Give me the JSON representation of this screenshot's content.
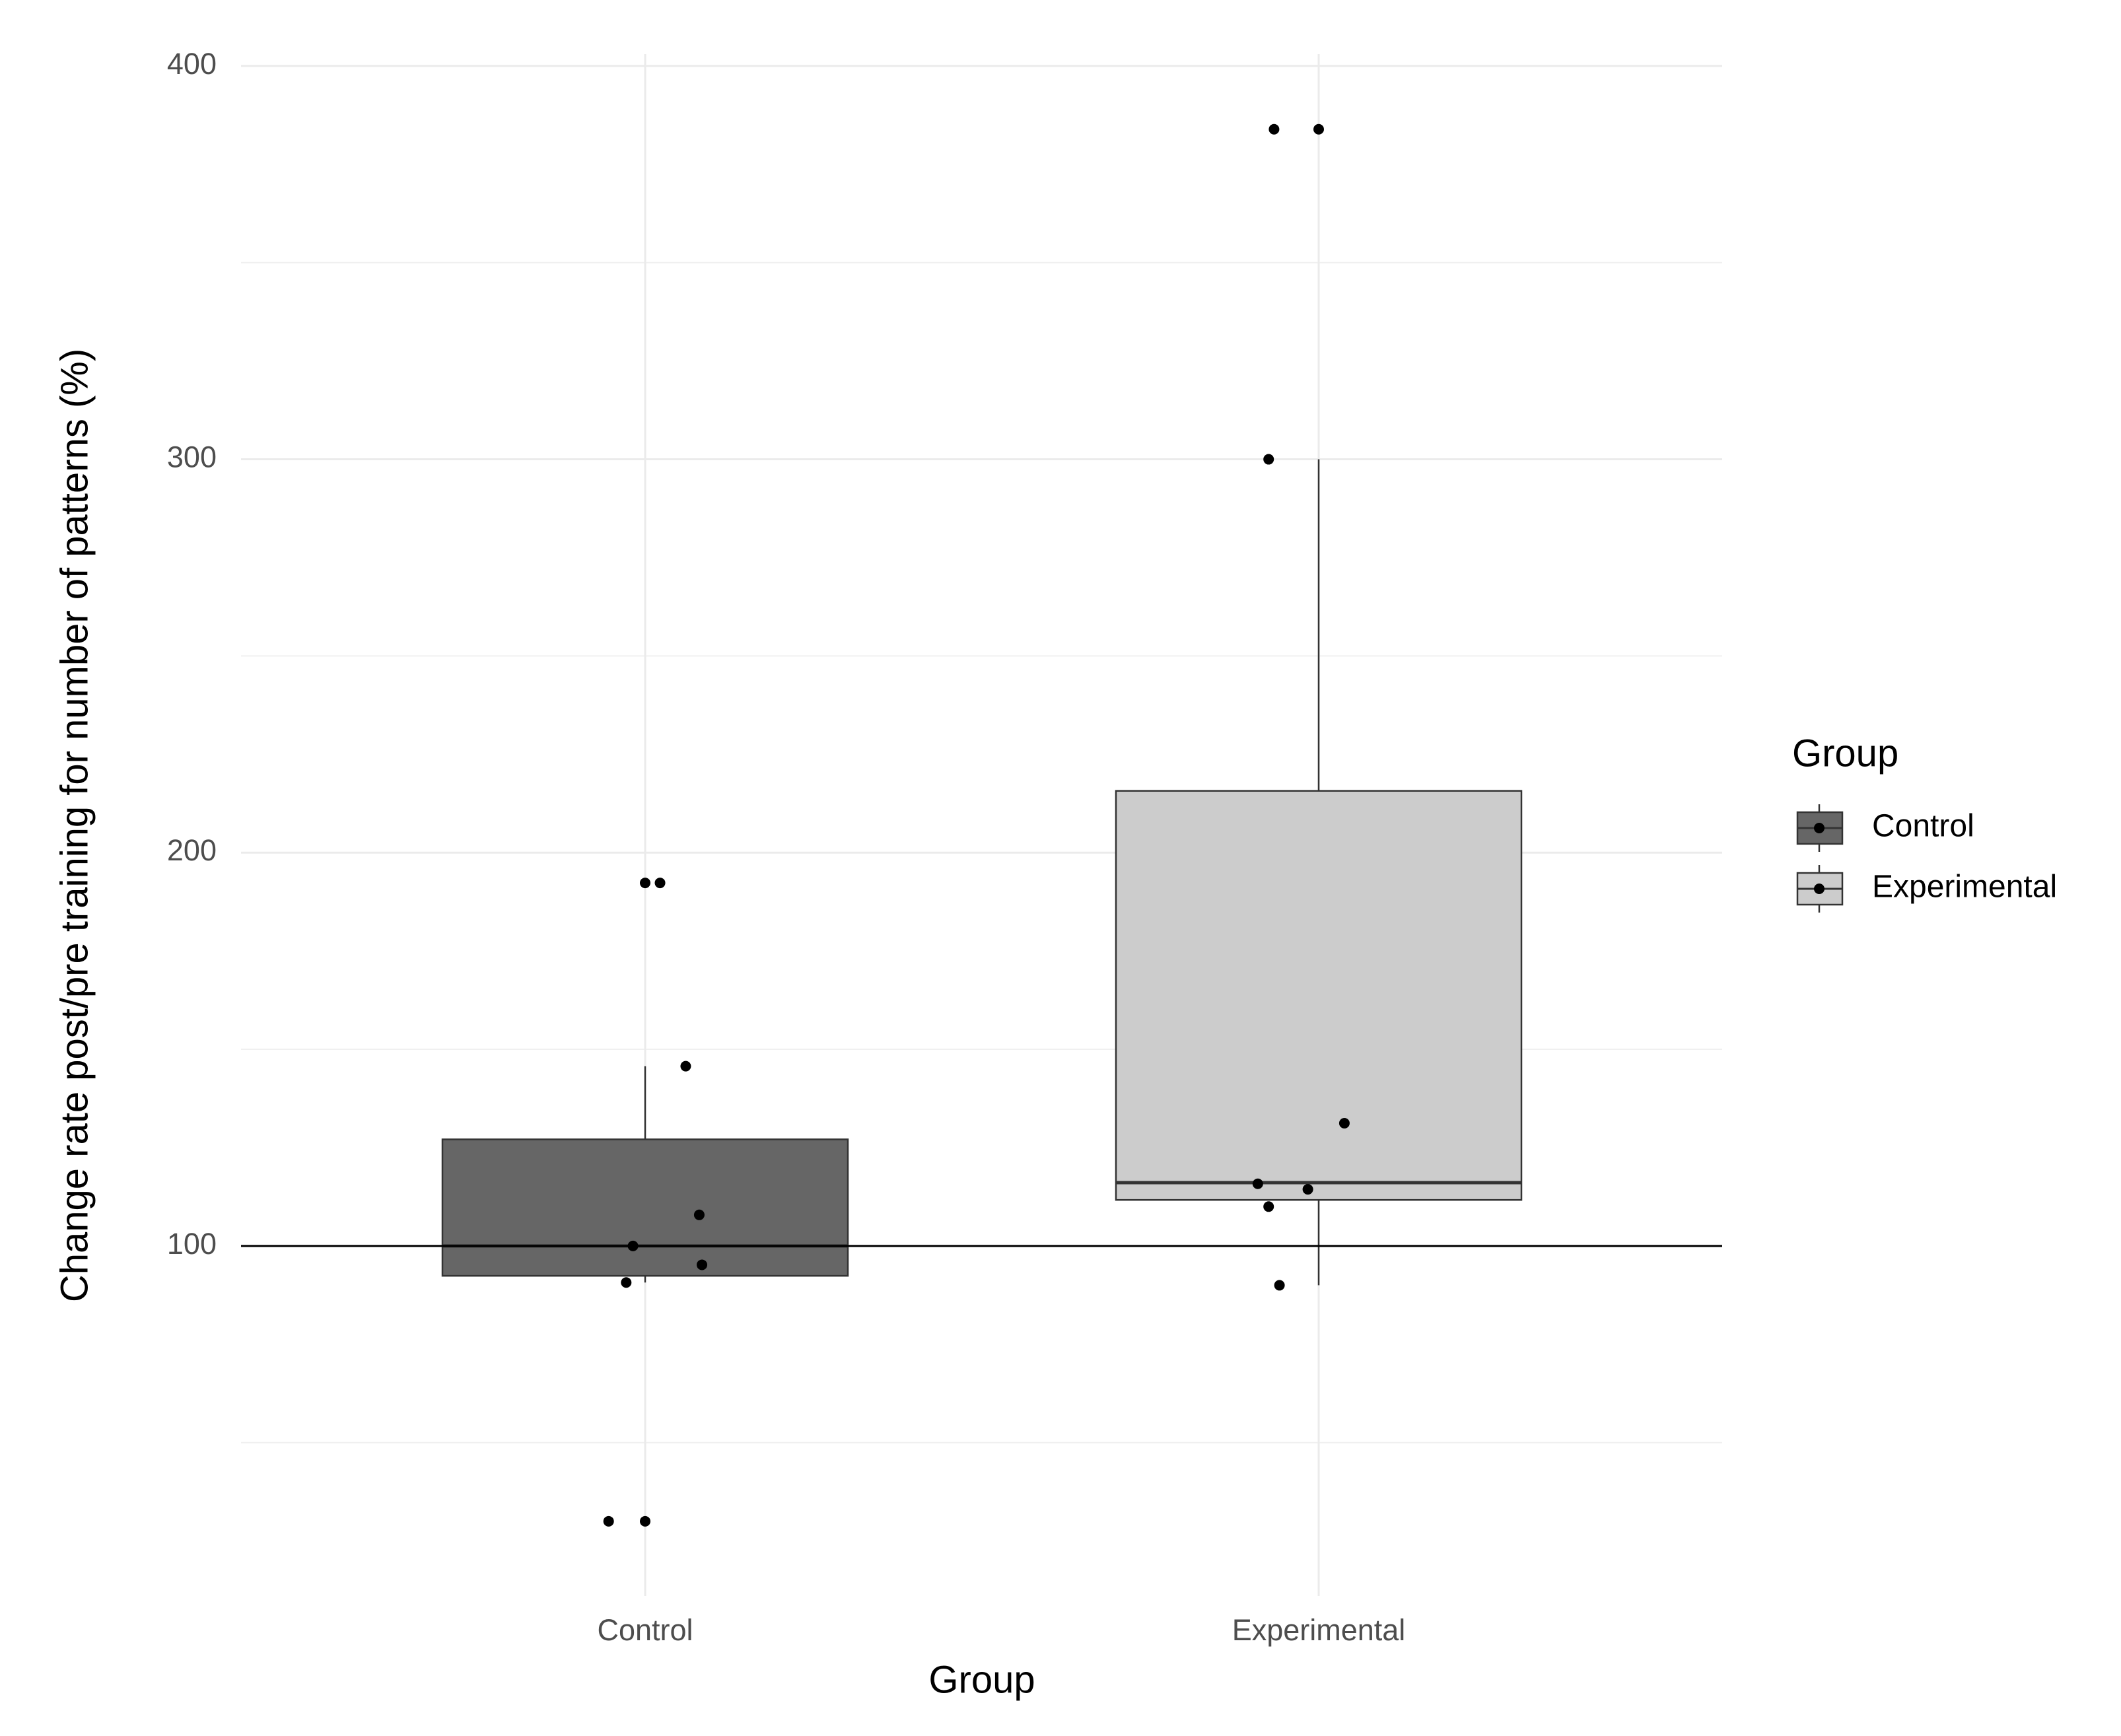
{
  "chart_data": {
    "type": "boxplot",
    "x_label": "Group",
    "y_label": "Change rate post/pre training for number of patterns (%)",
    "legend_title": "Group",
    "legend_position": "right",
    "categories": [
      "Control",
      "Experimental"
    ],
    "ylim": [
      11,
      403
    ],
    "yticks": [
      100,
      200,
      300,
      400
    ],
    "y_minor_ticks": [
      50,
      150,
      250,
      350
    ],
    "grid": true,
    "hline": 100,
    "series": [
      {
        "name": "Control",
        "color": "#666666",
        "whisker_low": 90.7,
        "q1": 92.4,
        "median": 100,
        "q3": 127.1,
        "whisker_high": 145.7,
        "points": [
          192.3,
          192.3,
          145.7,
          107.9,
          100,
          95.2,
          90.7,
          30,
          30
        ]
      },
      {
        "name": "Experimental",
        "color": "#cccccc",
        "whisker_low": 90,
        "q1": 111.7,
        "median": 116.1,
        "q3": 215.7,
        "whisker_high": 300,
        "points": [
          383.9,
          383.9,
          300,
          131.2,
          115.8,
          114.4,
          110,
          90
        ]
      }
    ]
  }
}
